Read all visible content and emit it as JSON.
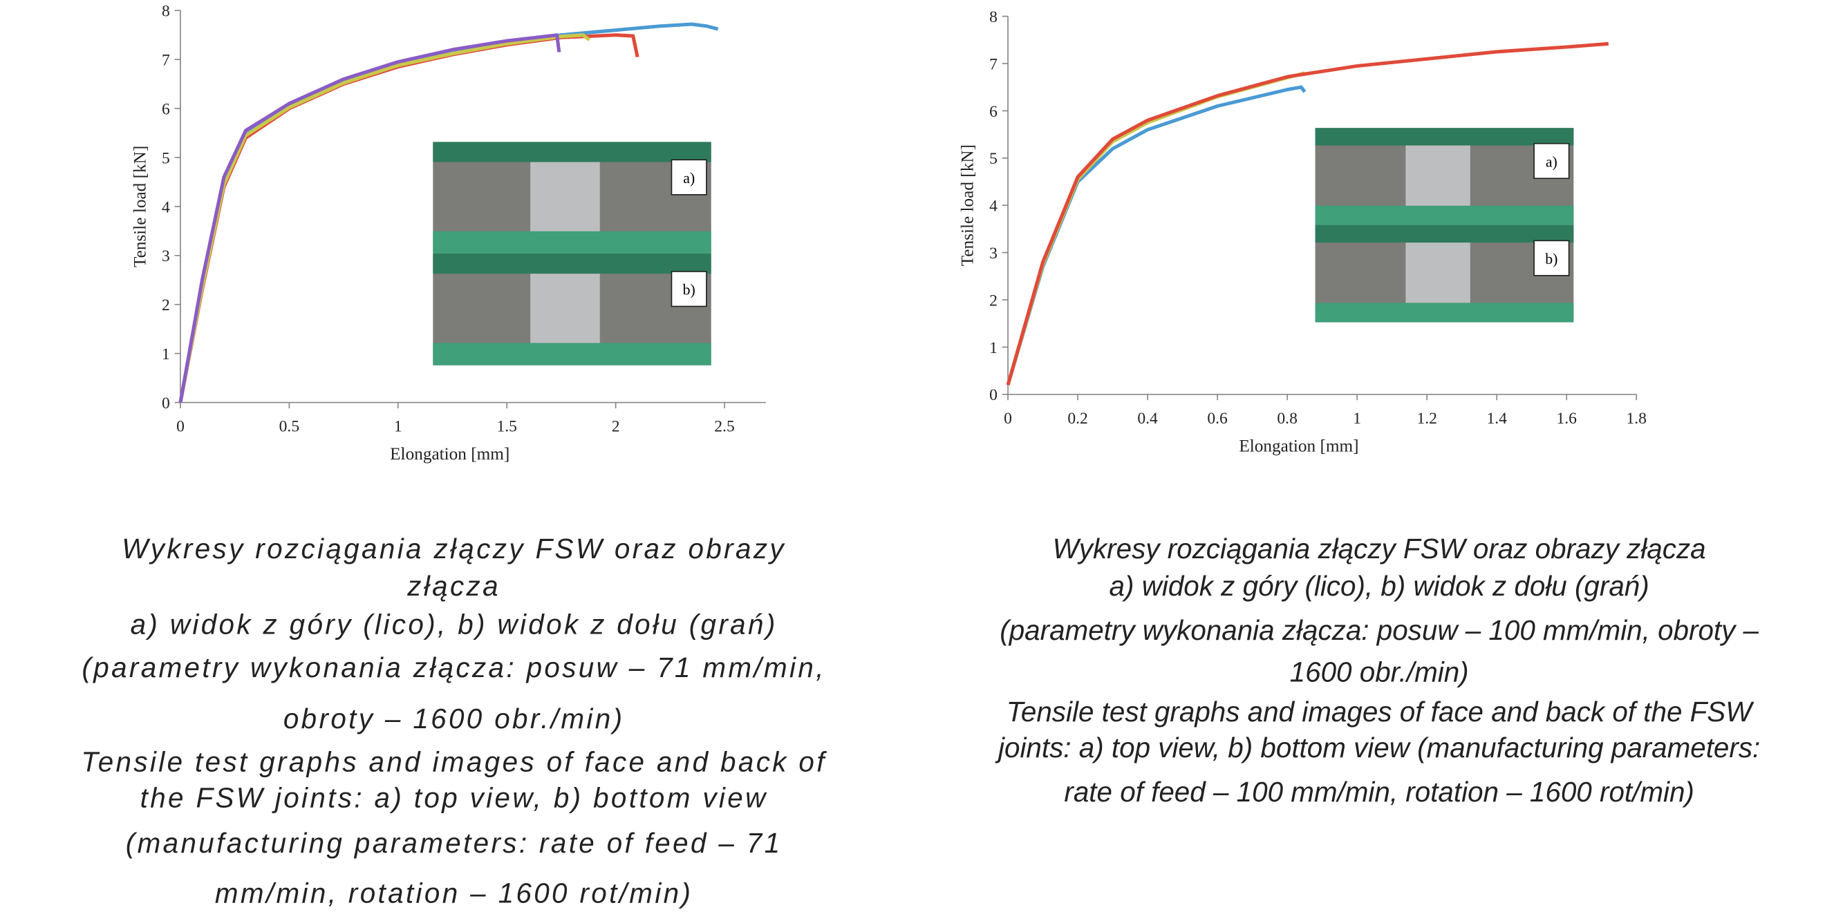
{
  "chart_data": [
    {
      "type": "line",
      "xlabel": "Elongation  [mm]",
      "ylabel": "Tensile load [kN]",
      "xlim": [
        0,
        2.69
      ],
      "ylim": [
        0,
        8
      ],
      "xticks": [
        0,
        0.5,
        1,
        1.5,
        2,
        2.5
      ],
      "yticks": [
        0,
        1,
        2,
        3,
        4,
        5,
        6,
        7,
        8
      ],
      "inset_labels": [
        "a)",
        "b)"
      ],
      "series": [
        {
          "color": "#4a9ad4",
          "x": [
            0,
            0.1,
            0.2,
            0.3,
            0.5,
            0.75,
            1,
            1.25,
            1.5,
            1.75,
            2,
            2.2,
            2.35,
            2.42,
            2.47
          ],
          "values": [
            0,
            2.4,
            4.5,
            5.5,
            6.05,
            6.55,
            6.9,
            7.15,
            7.35,
            7.5,
            7.6,
            7.68,
            7.72,
            7.68,
            7.62
          ]
        },
        {
          "color": "#e04a3a",
          "x": [
            0,
            0.1,
            0.2,
            0.3,
            0.5,
            0.75,
            1,
            1.25,
            1.5,
            1.75,
            2,
            2.08,
            2.1
          ],
          "values": [
            0,
            2.3,
            4.4,
            5.4,
            6.0,
            6.5,
            6.85,
            7.1,
            7.3,
            7.45,
            7.5,
            7.48,
            7.05
          ]
        },
        {
          "color": "#c9c94a",
          "x": [
            0,
            0.1,
            0.2,
            0.3,
            0.5,
            0.75,
            1,
            1.25,
            1.5,
            1.75,
            1.85,
            1.88
          ],
          "values": [
            0,
            2.35,
            4.45,
            5.45,
            6.02,
            6.52,
            6.88,
            7.12,
            7.32,
            7.47,
            7.5,
            7.4
          ]
        },
        {
          "color": "#8a5cc4",
          "x": [
            0,
            0.1,
            0.2,
            0.3,
            0.5,
            0.75,
            1,
            1.25,
            1.5,
            1.73,
            1.74
          ],
          "values": [
            0,
            2.5,
            4.6,
            5.55,
            6.1,
            6.6,
            6.95,
            7.2,
            7.38,
            7.5,
            7.15
          ]
        }
      ],
      "caption": [
        "Wykresy rozciągania złączy FSW oraz obrazy",
        "złącza",
        "a) widok z góry (lico), b) widok z dołu (grań)",
        "(parametry wykonania złącza: posuw – 71 mm/min,",
        "obroty – 1600 obr./min)",
        "Tensile test graphs and images of  face and back  of",
        "the FSW joints: a) top view, b) bottom view",
        "(manufacturing parameters: rate of feed – 71",
        "mm/min, rotation – 1600 rot/min)"
      ]
    },
    {
      "type": "line",
      "xlabel": "Elongation [mm]",
      "ylabel": "Tensile load [kN]",
      "xlim": [
        0,
        1.8
      ],
      "ylim": [
        0,
        8
      ],
      "xticks": [
        0,
        0.2,
        0.4,
        0.6,
        0.8,
        1,
        1.2,
        1.4,
        1.6,
        1.8
      ],
      "yticks": [
        0,
        1,
        2,
        3,
        4,
        5,
        6,
        7,
        8
      ],
      "inset_labels": [
        "a)",
        "b)"
      ],
      "series": [
        {
          "color": "#4a9ad4",
          "x": [
            0,
            0.1,
            0.2,
            0.3,
            0.4,
            0.6,
            0.8,
            0.84,
            0.85
          ],
          "values": [
            0.2,
            2.7,
            4.5,
            5.2,
            5.6,
            6.1,
            6.45,
            6.5,
            6.4
          ]
        },
        {
          "color": "#c9c94a",
          "x": [
            0,
            0.1,
            0.2,
            0.3,
            0.4,
            0.6,
            0.8,
            0.85
          ],
          "values": [
            0.2,
            2.75,
            4.55,
            5.35,
            5.75,
            6.3,
            6.7,
            6.8
          ]
        },
        {
          "color": "#e04a3a",
          "x": [
            0,
            0.1,
            0.2,
            0.3,
            0.4,
            0.6,
            0.8,
            1,
            1.2,
            1.4,
            1.6,
            1.72
          ],
          "values": [
            0.2,
            2.8,
            4.6,
            5.4,
            5.8,
            6.32,
            6.72,
            6.95,
            7.1,
            7.25,
            7.35,
            7.42
          ]
        }
      ],
      "caption": [
        "Wykresy rozciągania złączy FSW oraz obrazy złącza",
        "a) widok z góry (lico), b) widok z dołu (grań)",
        "(parametry wykonania złącza: posuw – 100 mm/min, obroty –",
        "1600 obr./min)",
        "Tensile test graphs and images of  face and back  of the FSW",
        "joints: a) top view, b) bottom view (manufacturing parameters:",
        "rate of feed – 100 mm/min, rotation – 1600 rot/min)"
      ]
    }
  ]
}
